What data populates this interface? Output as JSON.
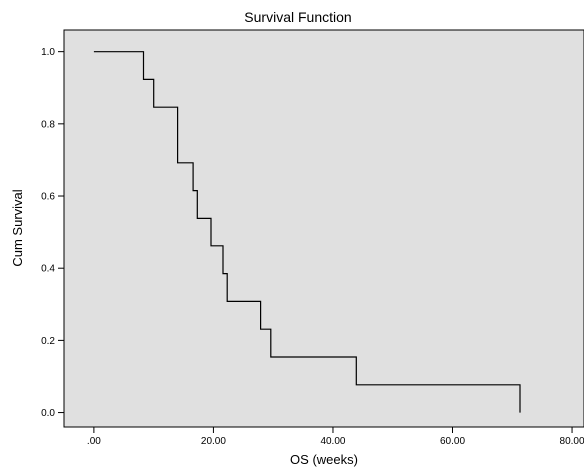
{
  "chart_data": {
    "type": "line",
    "step": true,
    "title": "Survival Function",
    "xlabel": "OS (weeks)",
    "ylabel": "Cum Survival",
    "xlim": [
      -5,
      82
    ],
    "ylim": [
      -0.04,
      1.06
    ],
    "xticks": [
      0,
      20,
      40,
      60,
      80
    ],
    "xtick_labels": [
      ".00",
      "20.00",
      "40.00",
      "60.00",
      "80.00"
    ],
    "yticks": [
      0.0,
      0.2,
      0.4,
      0.6,
      0.8,
      1.0
    ],
    "ytick_labels": [
      "0.0",
      "0.2",
      "0.4",
      "0.6",
      "0.8",
      "1.0"
    ],
    "grid": false,
    "legend": "none",
    "plot_background": "#e0e0e0",
    "line_color": "#000000",
    "series": [
      {
        "x": [
          0.0,
          8.3,
          10.0,
          14.0,
          16.6,
          17.3,
          19.6,
          21.6,
          22.3,
          27.9,
          29.6,
          43.9,
          71.3
        ],
        "y": [
          1.0,
          0.923,
          0.846,
          0.692,
          0.615,
          0.538,
          0.462,
          0.385,
          0.308,
          0.231,
          0.154,
          0.077,
          0.0
        ]
      }
    ]
  }
}
